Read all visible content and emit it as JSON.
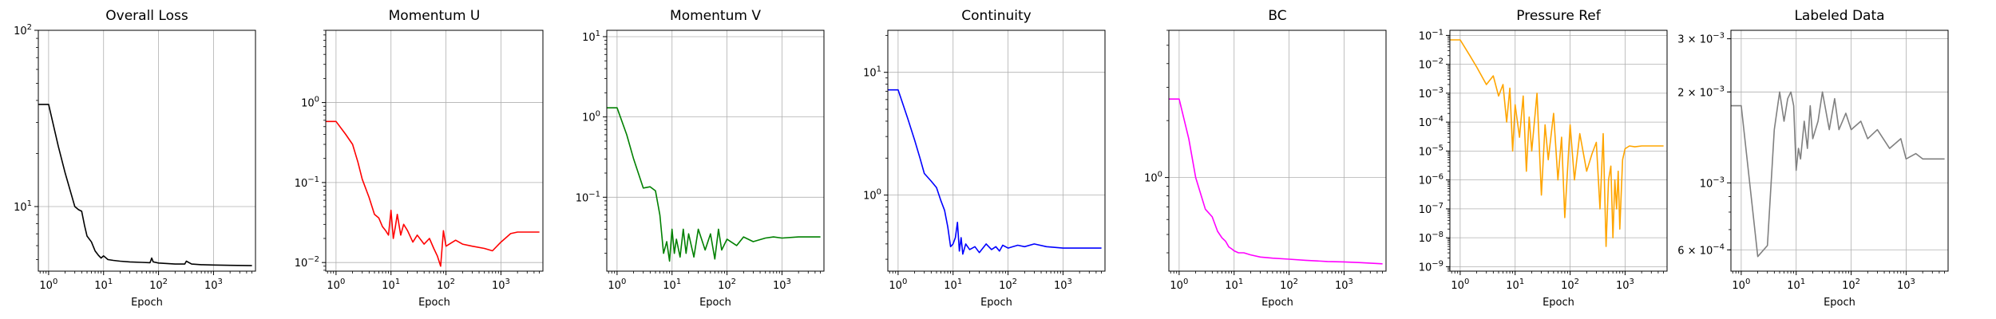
{
  "figure": {
    "panels": [
      {
        "title": "Overall Loss",
        "xlabel": "Epoch"
      },
      {
        "title": "Momentum U",
        "xlabel": "Epoch"
      },
      {
        "title": "Momentum V",
        "xlabel": "Epoch"
      },
      {
        "title": "Continuity",
        "xlabel": "Epoch"
      },
      {
        "title": "BC",
        "xlabel": "Epoch"
      },
      {
        "title": "Pressure Ref",
        "xlabel": "Epoch"
      },
      {
        "title": "Labeled Data",
        "xlabel": "Epoch"
      }
    ]
  },
  "chart_data": [
    {
      "type": "line",
      "title": "Overall Loss",
      "xlabel": "Epoch",
      "ylabel": "",
      "xscale": "log",
      "yscale": "log",
      "grid": true,
      "xlim": [
        0.65,
        5800
      ],
      "ylim": [
        4.3,
        100
      ],
      "xticks": [
        {
          "v": 1,
          "label": "10^0"
        },
        {
          "v": 10,
          "label": "10^1"
        },
        {
          "v": 100,
          "label": "10^2"
        },
        {
          "v": 1000,
          "label": "10^3"
        }
      ],
      "yticks": [
        {
          "v": 10,
          "label": "10^1"
        },
        {
          "v": 100,
          "label": "10^2"
        }
      ],
      "series": [
        {
          "color": "#000000",
          "x": [
            0.65,
            1,
            1.5,
            2,
            3,
            3.5,
            4,
            4.5,
            5,
            6,
            7,
            8,
            9,
            10,
            12,
            15,
            20,
            30,
            50,
            70,
            75,
            80,
            100,
            200,
            300,
            320,
            400,
            600,
            1000,
            2000,
            5000
          ],
          "y": [
            38,
            38,
            22,
            15.5,
            10,
            9.6,
            9.4,
            7.8,
            6.8,
            6.3,
            5.6,
            5.3,
            5.1,
            5.25,
            5.0,
            4.95,
            4.9,
            4.85,
            4.82,
            4.8,
            5.1,
            4.85,
            4.78,
            4.72,
            4.72,
            4.9,
            4.72,
            4.68,
            4.66,
            4.64,
            4.62
          ]
        }
      ]
    },
    {
      "type": "line",
      "title": "Momentum U",
      "xlabel": "Epoch",
      "ylabel": "",
      "xscale": "log",
      "yscale": "log",
      "grid": true,
      "xlim": [
        0.65,
        5800
      ],
      "ylim": [
        0.0078,
        8
      ],
      "xticks": [
        {
          "v": 1,
          "label": "10^0"
        },
        {
          "v": 10,
          "label": "10^1"
        },
        {
          "v": 100,
          "label": "10^2"
        },
        {
          "v": 1000,
          "label": "10^3"
        }
      ],
      "yticks": [
        {
          "v": 0.01,
          "label": "10^−2"
        },
        {
          "v": 0.1,
          "label": "10^−1"
        },
        {
          "v": 1,
          "label": "10^0"
        }
      ],
      "series": [
        {
          "color": "#ff0000",
          "x": [
            0.65,
            1,
            1.5,
            2,
            2.5,
            3,
            4,
            5,
            6,
            7,
            8,
            9,
            10,
            11,
            12,
            13,
            15,
            17,
            20,
            25,
            30,
            40,
            50,
            60,
            70,
            80,
            90,
            100,
            150,
            200,
            300,
            500,
            700,
            1000,
            1500,
            2000,
            3000,
            5000
          ],
          "y": [
            0.58,
            0.58,
            0.4,
            0.3,
            0.18,
            0.11,
            0.065,
            0.04,
            0.036,
            0.028,
            0.025,
            0.022,
            0.045,
            0.02,
            0.028,
            0.04,
            0.022,
            0.03,
            0.025,
            0.018,
            0.022,
            0.017,
            0.02,
            0.015,
            0.012,
            0.009,
            0.025,
            0.016,
            0.019,
            0.017,
            0.016,
            0.015,
            0.014,
            0.018,
            0.023,
            0.024,
            0.024,
            0.024
          ]
        }
      ]
    },
    {
      "type": "line",
      "title": "Momentum V",
      "xlabel": "Epoch",
      "ylabel": "",
      "xscale": "log",
      "yscale": "log",
      "grid": true,
      "xlim": [
        0.65,
        5800
      ],
      "ylim": [
        0.012,
        12
      ],
      "xticks": [
        {
          "v": 1,
          "label": "10^0"
        },
        {
          "v": 10,
          "label": "10^1"
        },
        {
          "v": 100,
          "label": "10^2"
        },
        {
          "v": 1000,
          "label": "10^3"
        }
      ],
      "yticks": [
        {
          "v": 0.1,
          "label": "10^−1"
        },
        {
          "v": 1,
          "label": "10^0"
        },
        {
          "v": 10,
          "label": "10^1"
        }
      ],
      "series": [
        {
          "color": "#008000",
          "x": [
            0.65,
            1,
            1.5,
            2,
            3,
            4,
            5,
            6,
            7,
            8,
            9,
            10,
            11,
            12,
            14,
            16,
            18,
            20,
            25,
            30,
            40,
            50,
            60,
            70,
            80,
            100,
            150,
            200,
            300,
            500,
            700,
            1000,
            2000,
            5000
          ],
          "y": [
            1.3,
            1.3,
            0.6,
            0.3,
            0.13,
            0.135,
            0.12,
            0.06,
            0.02,
            0.028,
            0.016,
            0.04,
            0.02,
            0.03,
            0.018,
            0.04,
            0.02,
            0.035,
            0.018,
            0.04,
            0.022,
            0.035,
            0.017,
            0.04,
            0.022,
            0.03,
            0.025,
            0.032,
            0.028,
            0.031,
            0.032,
            0.031,
            0.032,
            0.032
          ]
        }
      ]
    },
    {
      "type": "line",
      "title": "Continuity",
      "xlabel": "Epoch",
      "ylabel": "",
      "xscale": "log",
      "yscale": "log",
      "grid": true,
      "xlim": [
        0.65,
        5800
      ],
      "ylim": [
        0.24,
        22
      ],
      "xticks": [
        {
          "v": 1,
          "label": "10^0"
        },
        {
          "v": 10,
          "label": "10^1"
        },
        {
          "v": 100,
          "label": "10^2"
        },
        {
          "v": 1000,
          "label": "10^3"
        }
      ],
      "yticks": [
        {
          "v": 1,
          "label": "10^0"
        },
        {
          "v": 10,
          "label": "10^1"
        }
      ],
      "series": [
        {
          "color": "#0000ff",
          "x": [
            0.65,
            1,
            1.5,
            2,
            2.5,
            3,
            4,
            5,
            6,
            7,
            8,
            9,
            10,
            11,
            12,
            13,
            14,
            15,
            17,
            20,
            25,
            30,
            40,
            50,
            60,
            70,
            80,
            100,
            150,
            200,
            300,
            500,
            1000,
            2000,
            5000
          ],
          "y": [
            7.2,
            7.2,
            4.2,
            2.8,
            2.0,
            1.5,
            1.3,
            1.15,
            0.9,
            0.75,
            0.55,
            0.38,
            0.4,
            0.45,
            0.6,
            0.35,
            0.45,
            0.33,
            0.4,
            0.36,
            0.38,
            0.34,
            0.4,
            0.36,
            0.38,
            0.35,
            0.39,
            0.37,
            0.39,
            0.38,
            0.4,
            0.38,
            0.37,
            0.37,
            0.37
          ]
        }
      ]
    },
    {
      "type": "line",
      "title": "BC",
      "xlabel": "Epoch",
      "ylabel": "",
      "xscale": "log",
      "yscale": "log",
      "grid": true,
      "xlim": [
        0.65,
        5800
      ],
      "ylim": [
        0.32,
        6
      ],
      "xticks": [
        {
          "v": 1,
          "label": "10^0"
        },
        {
          "v": 10,
          "label": "10^1"
        },
        {
          "v": 100,
          "label": "10^2"
        },
        {
          "v": 1000,
          "label": "10^3"
        }
      ],
      "yticks": [
        {
          "v": 1,
          "label": "10^0"
        }
      ],
      "series": [
        {
          "color": "#ff00ff",
          "x": [
            0.65,
            1,
            1.5,
            2,
            3,
            4,
            5,
            6,
            7,
            8,
            9,
            10,
            12,
            15,
            20,
            30,
            50,
            100,
            200,
            500,
            1000,
            2000,
            5000
          ],
          "y": [
            2.6,
            2.6,
            1.6,
            1.0,
            0.68,
            0.62,
            0.52,
            0.48,
            0.46,
            0.43,
            0.42,
            0.41,
            0.4,
            0.4,
            0.39,
            0.38,
            0.375,
            0.37,
            0.365,
            0.36,
            0.358,
            0.355,
            0.35
          ]
        }
      ]
    },
    {
      "type": "line",
      "title": "Pressure Ref",
      "xlabel": "Epoch",
      "ylabel": "",
      "xscale": "log",
      "yscale": "log",
      "grid": true,
      "xlim": [
        0.65,
        5800
      ],
      "ylim": [
        7e-10,
        0.15
      ],
      "xticks": [
        {
          "v": 1,
          "label": "10^0"
        },
        {
          "v": 10,
          "label": "10^1"
        },
        {
          "v": 100,
          "label": "10^2"
        },
        {
          "v": 1000,
          "label": "10^3"
        }
      ],
      "yticks": [
        {
          "v": 1e-09,
          "label": "10^−9"
        },
        {
          "v": 1e-08,
          "label": "10^−8"
        },
        {
          "v": 1e-07,
          "label": "10^−7"
        },
        {
          "v": 1e-06,
          "label": "10^−6"
        },
        {
          "v": 1e-05,
          "label": "10^−5"
        },
        {
          "v": 0.0001,
          "label": "10^−4"
        },
        {
          "v": 0.001,
          "label": "10^−3"
        },
        {
          "v": 0.01,
          "label": "10^−2"
        },
        {
          "v": 0.1,
          "label": "10^−1"
        }
      ],
      "series": [
        {
          "color": "#ffa500",
          "x": [
            0.65,
            1,
            1.5,
            2,
            3,
            4,
            5,
            6,
            7,
            8,
            9,
            10,
            12,
            14,
            16,
            18,
            20,
            25,
            30,
            35,
            40,
            50,
            60,
            70,
            80,
            100,
            120,
            150,
            200,
            250,
            300,
            350,
            400,
            450,
            500,
            550,
            600,
            650,
            700,
            750,
            800,
            900,
            1000,
            1200,
            1500,
            2000,
            3000,
            5000
          ],
          "y": [
            0.07,
            0.07,
            0.02,
            0.008,
            0.002,
            0.004,
            0.0008,
            0.002,
            0.0001,
            0.0015,
            1e-05,
            0.0004,
            3e-05,
            0.0008,
            2e-06,
            0.00015,
            1e-05,
            0.001,
            3e-07,
            8e-05,
            5e-06,
            0.0002,
            1e-06,
            3e-05,
            5e-08,
            8e-05,
            1e-06,
            4e-05,
            2e-06,
            8e-06,
            2e-05,
            1e-07,
            4e-05,
            5e-09,
            1e-06,
            3e-06,
            1e-08,
            1e-06,
            1e-07,
            2e-06,
            2e-08,
            5e-06,
            1.2e-05,
            1.5e-05,
            1.4e-05,
            1.5e-05,
            1.5e-05,
            1.5e-05
          ]
        }
      ]
    },
    {
      "type": "line",
      "title": "Labeled Data",
      "xlabel": "Epoch",
      "ylabel": "",
      "xscale": "log",
      "yscale": "log",
      "grid": true,
      "xlim": [
        0.65,
        5800
      ],
      "ylim": [
        0.00051,
        0.0032
      ],
      "xticks": [
        {
          "v": 1,
          "label": "10^0"
        },
        {
          "v": 10,
          "label": "10^1"
        },
        {
          "v": 100,
          "label": "10^2"
        },
        {
          "v": 1000,
          "label": "10^3"
        }
      ],
      "yticks": [
        {
          "v": 0.0006,
          "label": "6 × 10^−4"
        },
        {
          "v": 0.001,
          "label": "10^−3"
        },
        {
          "v": 0.002,
          "label": "2 × 10^−3"
        },
        {
          "v": 0.003,
          "label": "3 × 10^−3"
        }
      ],
      "series": [
        {
          "color": "#808080",
          "x": [
            0.65,
            1,
            2,
            3,
            4,
            5,
            6,
            7,
            8,
            9,
            10,
            11,
            12,
            14,
            16,
            18,
            20,
            25,
            30,
            40,
            50,
            60,
            80,
            100,
            150,
            200,
            300,
            500,
            800,
            1000,
            1500,
            2000,
            3000,
            5000
          ],
          "y": [
            0.0018,
            0.0018,
            0.00057,
            0.00062,
            0.0015,
            0.002,
            0.0016,
            0.0019,
            0.002,
            0.0018,
            0.0011,
            0.0013,
            0.0012,
            0.0016,
            0.0013,
            0.0018,
            0.0014,
            0.0016,
            0.002,
            0.0015,
            0.0019,
            0.0015,
            0.0017,
            0.0015,
            0.0016,
            0.0014,
            0.0015,
            0.0013,
            0.0014,
            0.0012,
            0.00125,
            0.0012,
            0.0012,
            0.0012
          ]
        }
      ]
    }
  ]
}
